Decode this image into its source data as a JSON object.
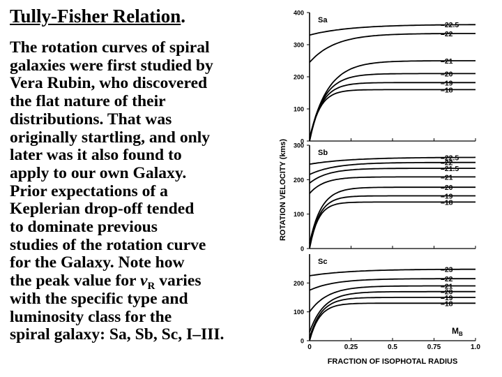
{
  "slide": {
    "title": "Tully-Fisher Relation",
    "title_suffix": ".",
    "lines": [
      "The rotation curves of spiral",
      "galaxies were first studied by",
      "Vera Rubin, who discovered",
      "the flat nature of their",
      "distributions. That was",
      "originally startling, and only",
      "later was it also found to",
      "apply to our own Galaxy.",
      "Prior expectations of a",
      "Keplerian drop-off tended",
      "to dominate previous",
      "studies of the rotation curve",
      "for the Galaxy. Note how"
    ],
    "line_peak_before": "the peak value for ",
    "line_peak_var": "v",
    "line_peak_sub": "R",
    "line_peak_after": " varies",
    "lines_end": [
      "with the specific type and",
      "luminosity class for the",
      "spiral galaxy: Sa, Sb, Sc, I–III."
    ]
  },
  "chart_data": {
    "type": "line",
    "ylabel": "ROTATION VELOCITY (kms)",
    "xlabel": "FRACTION OF ISOPHOTAL RADIUS",
    "xlim": [
      0,
      1.0
    ],
    "x_ticks": [
      "0",
      "0.25",
      "0.5",
      "0.75",
      "1.0"
    ],
    "legend_label": "M",
    "legend_sub": "B",
    "panels": [
      {
        "name": "Sa",
        "ylim": [
          0,
          400
        ],
        "y_ticks": [
          "400",
          "300",
          "200",
          "100",
          "0"
        ],
        "series": [
          {
            "name": "-22.5",
            "plateau": 363,
            "start": 330
          },
          {
            "name": "-22",
            "plateau": 335,
            "start": 245
          },
          {
            "name": "-21",
            "plateau": 250,
            "start": 10
          },
          {
            "name": "-20",
            "plateau": 210,
            "start": 5
          },
          {
            "name": "-19",
            "plateau": 182,
            "start": 0
          },
          {
            "name": "-18",
            "plateau": 160,
            "start": 0
          }
        ]
      },
      {
        "name": "Sb",
        "ylim": [
          0,
          300
        ],
        "y_ticks": [
          "300",
          "200",
          "100",
          "0"
        ],
        "series": [
          {
            "name": "-22.5",
            "plateau": 265,
            "start": 245
          },
          {
            "name": "-22",
            "plateau": 250,
            "start": 215
          },
          {
            "name": "-21.5",
            "plateau": 233,
            "start": 190
          },
          {
            "name": "-21",
            "plateau": 208,
            "start": 160
          },
          {
            "name": "-20",
            "plateau": 178,
            "start": 15
          },
          {
            "name": "-19",
            "plateau": 153,
            "start": 5
          },
          {
            "name": "-18",
            "plateau": 135,
            "start": 0
          }
        ]
      },
      {
        "name": "Sc",
        "ylim": [
          0,
          300
        ],
        "y_ticks": [
          "200",
          "100",
          "0"
        ],
        "series": [
          {
            "name": "-23",
            "plateau": 248,
            "start": 225
          },
          {
            "name": "-22",
            "plateau": 215,
            "start": 175
          },
          {
            "name": "-21",
            "plateau": 190,
            "start": 100
          },
          {
            "name": "-20",
            "plateau": 170,
            "start": 30
          },
          {
            "name": "-19",
            "plateau": 150,
            "start": 10
          },
          {
            "name": "-18",
            "plateau": 130,
            "start": 0
          }
        ]
      }
    ]
  }
}
